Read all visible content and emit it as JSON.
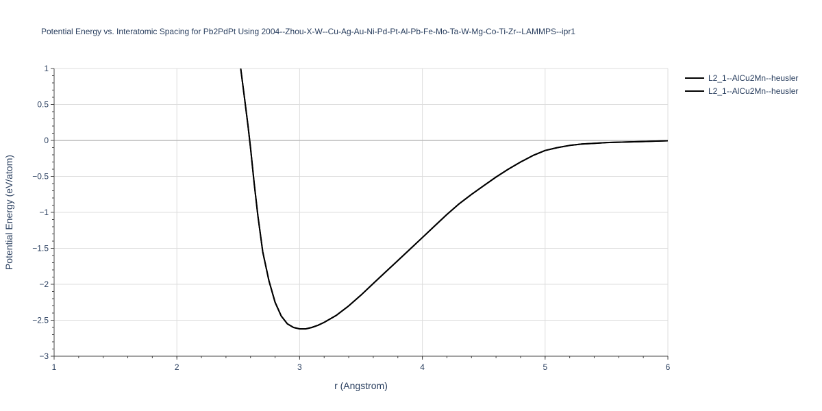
{
  "chart_data": {
    "type": "line",
    "title": "Potential Energy vs. Interatomic Spacing for Pb2PdPt Using 2004--Zhou-X-W--Cu-Ag-Au-Ni-Pd-Pt-Al-Pb-Fe-Mo-Ta-W-Mg-Co-Ti-Zr--LAMMPS--ipr1",
    "xlabel": "r (Angstrom)",
    "ylabel": "Potential Energy (eV/atom)",
    "xlim": [
      1,
      6
    ],
    "ylim": [
      -3,
      1
    ],
    "xticks": [
      1,
      2,
      3,
      4,
      5,
      6
    ],
    "yticks": [
      1,
      0.5,
      0,
      -0.5,
      -1,
      -1.5,
      -2,
      -2.5,
      -3
    ],
    "xtick_labels": [
      "1",
      "2",
      "3",
      "4",
      "5",
      "6"
    ],
    "ytick_labels": [
      "1",
      "0.5",
      "0",
      "−0.5",
      "−1",
      "−1.5",
      "−2",
      "−2.5",
      "−3"
    ],
    "grid": true,
    "legend_position": "top-right",
    "series": [
      {
        "name": "L2_1--AlCu2Mn--heusler",
        "color": "#000000",
        "x": [
          2.52,
          2.55,
          2.58,
          2.6,
          2.63,
          2.66,
          2.7,
          2.75,
          2.8,
          2.85,
          2.9,
          2.95,
          3.0,
          3.05,
          3.1,
          3.15,
          3.2,
          3.3,
          3.4,
          3.5,
          3.6,
          3.7,
          3.8,
          3.9,
          4.0,
          4.1,
          4.2,
          4.3,
          4.4,
          4.5,
          4.6,
          4.7,
          4.8,
          4.9,
          5.0,
          5.1,
          5.2,
          5.3,
          5.4,
          5.5,
          5.6,
          5.7,
          5.8,
          5.9,
          6.0
        ],
        "y": [
          1.0,
          0.6,
          0.2,
          -0.1,
          -0.6,
          -1.05,
          -1.55,
          -1.95,
          -2.25,
          -2.44,
          -2.55,
          -2.6,
          -2.62,
          -2.62,
          -2.6,
          -2.57,
          -2.53,
          -2.43,
          -2.3,
          -2.15,
          -1.99,
          -1.83,
          -1.67,
          -1.51,
          -1.35,
          -1.19,
          -1.03,
          -0.88,
          -0.75,
          -0.63,
          -0.51,
          -0.4,
          -0.3,
          -0.21,
          -0.14,
          -0.1,
          -0.07,
          -0.05,
          -0.04,
          -0.03,
          -0.025,
          -0.02,
          -0.015,
          -0.01,
          -0.005
        ]
      },
      {
        "name": "L2_1--AlCu2Mn--heusler",
        "color": "#000000",
        "x": [
          2.52,
          2.55,
          2.58,
          2.6,
          2.63,
          2.66,
          2.7,
          2.75,
          2.8,
          2.85,
          2.9,
          2.95,
          3.0,
          3.05,
          3.1,
          3.15,
          3.2,
          3.3,
          3.4,
          3.5,
          3.6,
          3.7,
          3.8,
          3.9,
          4.0,
          4.1,
          4.2,
          4.3,
          4.4,
          4.5,
          4.6,
          4.7,
          4.8,
          4.9,
          5.0,
          5.1,
          5.2,
          5.3,
          5.4,
          5.5,
          5.6,
          5.7,
          5.8,
          5.9,
          6.0
        ],
        "y": [
          1.0,
          0.6,
          0.2,
          -0.1,
          -0.6,
          -1.05,
          -1.55,
          -1.95,
          -2.25,
          -2.44,
          -2.55,
          -2.6,
          -2.62,
          -2.62,
          -2.6,
          -2.57,
          -2.53,
          -2.43,
          -2.3,
          -2.15,
          -1.99,
          -1.83,
          -1.67,
          -1.51,
          -1.35,
          -1.19,
          -1.03,
          -0.88,
          -0.75,
          -0.63,
          -0.51,
          -0.4,
          -0.3,
          -0.21,
          -0.14,
          -0.1,
          -0.07,
          -0.05,
          -0.04,
          -0.03,
          -0.025,
          -0.02,
          -0.015,
          -0.01,
          -0.005
        ]
      }
    ]
  }
}
